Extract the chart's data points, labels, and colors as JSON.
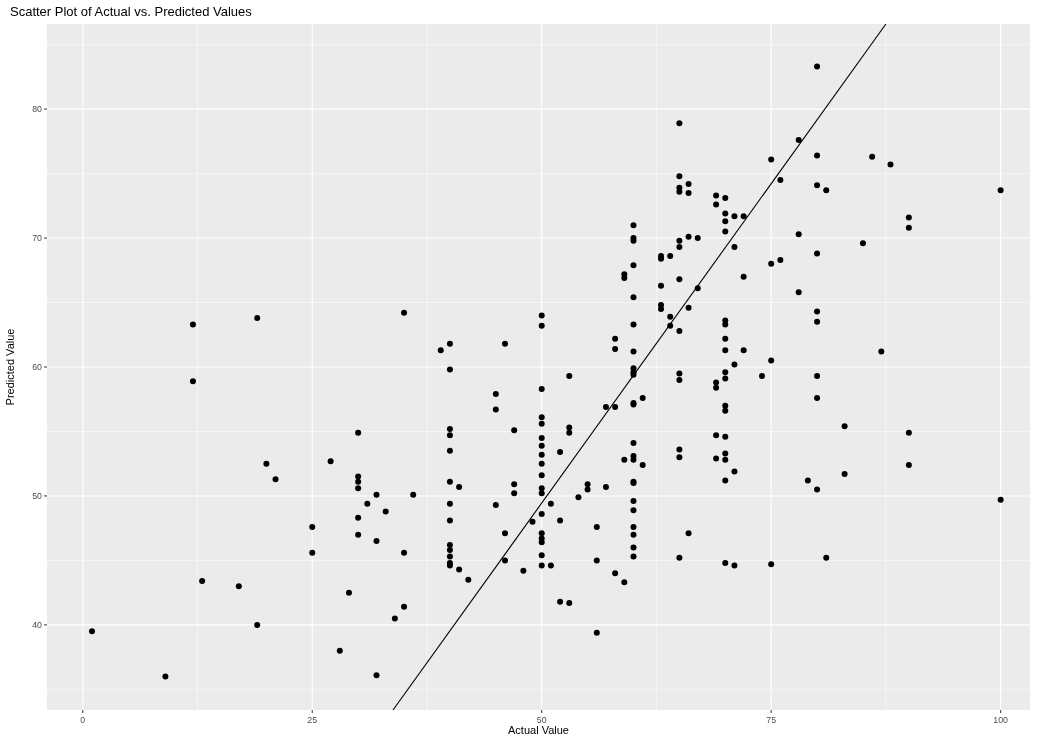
{
  "chart_data": {
    "type": "scatter",
    "title": "Scatter Plot of Actual vs. Predicted Values",
    "xlabel": "Actual Value",
    "ylabel": "Predicted Value",
    "xlim": [
      -3.9,
      103.2
    ],
    "ylim": [
      33.4,
      86.6
    ],
    "xticks": [
      0,
      25,
      50,
      75,
      100
    ],
    "yticks": [
      40,
      50,
      60,
      70,
      80
    ],
    "grid": true,
    "series": [
      {
        "marker": "circle",
        "color": "#000000",
        "x": [
          1,
          9,
          12,
          12,
          13,
          17,
          19,
          19,
          20,
          21,
          25,
          25,
          27,
          28,
          29,
          30,
          30,
          30,
          30,
          30,
          30,
          31,
          32,
          32,
          32,
          33,
          34,
          35,
          35,
          35,
          36,
          39,
          40,
          40,
          40,
          40,
          40,
          40,
          40,
          40,
          40,
          40,
          40,
          40,
          40,
          41,
          41,
          42,
          45,
          45,
          45,
          46,
          46,
          46,
          47,
          47,
          47,
          48,
          49,
          50,
          50,
          50,
          50,
          50,
          50,
          50,
          50,
          50,
          50,
          50,
          50,
          50,
          50,
          50,
          50,
          50,
          50,
          51,
          51,
          52,
          52,
          52,
          53,
          53,
          53,
          53,
          54,
          55,
          55,
          56,
          56,
          56,
          57,
          57,
          58,
          58,
          58,
          58,
          59,
          59,
          59,
          59,
          60,
          60,
          60,
          60,
          60,
          60,
          60,
          60,
          60,
          60,
          60,
          60,
          60,
          60,
          60,
          60,
          60,
          60,
          60,
          60,
          60,
          60,
          60,
          61,
          61,
          63,
          63,
          63,
          63,
          63,
          64,
          64,
          64,
          65,
          65,
          65,
          65,
          65,
          65,
          65,
          65,
          65,
          65,
          65,
          65,
          65,
          66,
          66,
          66,
          66,
          66,
          67,
          67,
          69,
          69,
          69,
          69,
          69,
          69,
          70,
          70,
          70,
          70,
          70,
          70,
          70,
          70,
          70,
          70,
          70,
          70,
          70,
          70,
          70,
          70,
          70,
          71,
          71,
          71,
          71,
          71,
          72,
          72,
          72,
          74,
          75,
          75,
          75,
          75,
          76,
          76,
          78,
          78,
          78,
          79,
          80,
          80,
          80,
          80,
          80,
          80,
          80,
          80,
          80,
          81,
          81,
          83,
          83,
          85,
          86,
          87,
          88,
          90,
          90,
          90,
          90,
          100,
          100
        ],
        "values": [
          39.5,
          36,
          63.3,
          58.9,
          43.4,
          43,
          63.8,
          40,
          52.5,
          51.3,
          47.6,
          45.6,
          52.7,
          38,
          42.5,
          54.9,
          51.5,
          51.1,
          50.6,
          48.3,
          47,
          49.4,
          50.1,
          46.5,
          36.1,
          48.8,
          40.5,
          64.2,
          45.6,
          41.4,
          50.1,
          61.3,
          61.8,
          59.8,
          55.2,
          54.7,
          53.5,
          51.1,
          49.4,
          48.1,
          46.2,
          45.8,
          45.3,
          44.8,
          44.6,
          50.7,
          44.3,
          43.5,
          57.9,
          56.7,
          49.3,
          61.8,
          47.1,
          45,
          55.1,
          50.9,
          50.2,
          44.2,
          48,
          64,
          63.2,
          58.3,
          56.1,
          55.6,
          54.5,
          53.9,
          53.2,
          52.5,
          51.6,
          50.6,
          50.2,
          48.6,
          47.1,
          46.7,
          46.4,
          45.4,
          44.6,
          49.4,
          44.6,
          53.4,
          48.1,
          41.8,
          59.3,
          55.3,
          54.9,
          41.7,
          49.9,
          50.9,
          50.5,
          47.6,
          45,
          39.4,
          56.9,
          50.7,
          62.2,
          61.4,
          56.9,
          44,
          67.2,
          66.9,
          52.8,
          43.3,
          71,
          70,
          69.8,
          67.9,
          65.4,
          63.3,
          61.2,
          59.9,
          59.6,
          59.4,
          57.2,
          57.1,
          54.1,
          53.1,
          52.8,
          51.1,
          51,
          49.6,
          48.9,
          47.6,
          47,
          46,
          45.3,
          57.6,
          52.4,
          68.6,
          68.4,
          66.3,
          64.8,
          64.5,
          68.6,
          63.9,
          63.2,
          78.9,
          74.8,
          73.9,
          73.6,
          69.8,
          69.3,
          66.8,
          62.8,
          59.5,
          59,
          53.6,
          53,
          45.2,
          74.2,
          73.5,
          70.1,
          64.6,
          47.1,
          70,
          66.1,
          73.3,
          72.6,
          58.8,
          58.4,
          54.7,
          52.9,
          73.1,
          71.9,
          71.3,
          70.5,
          63.6,
          63.3,
          62.2,
          61.3,
          59.6,
          59.1,
          57,
          56.6,
          54.6,
          53.3,
          52.8,
          51.2,
          44.8,
          71.7,
          69.3,
          60.2,
          51.9,
          44.6,
          71.7,
          67,
          61.3,
          59.3,
          76.1,
          68,
          60.5,
          44.7,
          74.5,
          68.3,
          77.6,
          70.3,
          65.8,
          51.2,
          83.3,
          76.4,
          74.1,
          68.8,
          64.3,
          63.5,
          59.3,
          57.6,
          50.5,
          73.7,
          45.2,
          55.4,
          51.7,
          69.6,
          76.3,
          61.2,
          75.7,
          71.6,
          70.8,
          54.9,
          52.4,
          73.7,
          49.7
        ]
      },
      {
        "type": "line",
        "marker": "none",
        "line_style": "solid",
        "color": "#000000",
        "x": [
          33.8,
          87.5
        ],
        "values": [
          33.4,
          86.6
        ]
      }
    ]
  }
}
